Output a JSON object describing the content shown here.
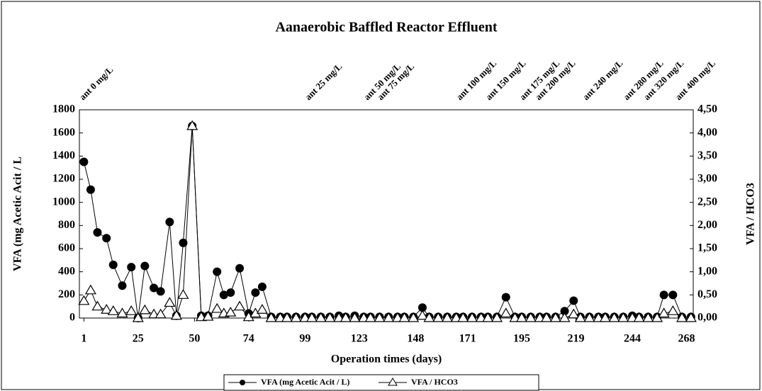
{
  "chart_data": {
    "type": "line",
    "title": "Aanaerobic Baffled Reactor Effluent",
    "xlabel": "Operation times (days)",
    "ylabel": "VFA (mg Acetic Acit / L",
    "y2label": "VFA / HCO3",
    "x": [
      1,
      4,
      7,
      11,
      14,
      18,
      22,
      25,
      28,
      32,
      35,
      39,
      42,
      45,
      49,
      53,
      56,
      60,
      63,
      66,
      70,
      74,
      77,
      80,
      84,
      88,
      91,
      95,
      99,
      102,
      106,
      110,
      114,
      117,
      121,
      125,
      128,
      132,
      136,
      140,
      143,
      147,
      151,
      154,
      158,
      162,
      166,
      169,
      173,
      177,
      180,
      184,
      188,
      192,
      195,
      199,
      203,
      206,
      210,
      214,
      218,
      221,
      225,
      229,
      232,
      236,
      240,
      244,
      247,
      251,
      255,
      258,
      262,
      266,
      270
    ],
    "xlim": [
      -1,
      271
    ],
    "xticks": [
      1,
      25,
      50,
      74,
      99,
      123,
      148,
      171,
      195,
      219,
      244,
      268
    ],
    "ylim": [
      0,
      1800
    ],
    "yticks": [
      0,
      200,
      400,
      600,
      800,
      1000,
      1200,
      1400,
      1600,
      1800
    ],
    "y2lim": [
      0,
      4.5
    ],
    "y2ticks": [
      {
        "value": 0,
        "label": "0,00"
      },
      {
        "value": 0.5,
        "label": "0,50"
      },
      {
        "value": 1,
        "label": "1,00"
      },
      {
        "value": 1.5,
        "label": "1,50"
      },
      {
        "value": 2,
        "label": "2,00"
      },
      {
        "value": 2.5,
        "label": "2,50"
      },
      {
        "value": 3,
        "label": "3,00"
      },
      {
        "value": 3.5,
        "label": "3,50"
      },
      {
        "value": 4,
        "label": "4,00"
      },
      {
        "value": 4.5,
        "label": "4,50"
      }
    ],
    "series": [
      {
        "name": "VFA (mg Acetic Acit / L)",
        "color": "#000000",
        "marker": "circle",
        "values": [
          1350,
          1110,
          740,
          690,
          460,
          280,
          440,
          0,
          450,
          260,
          230,
          830,
          20,
          650,
          1660,
          20,
          20,
          400,
          200,
          220,
          430,
          40,
          220,
          270,
          10,
          10,
          10,
          10,
          10,
          10,
          10,
          10,
          20,
          10,
          20,
          10,
          10,
          10,
          10,
          10,
          10,
          10,
          90,
          10,
          10,
          10,
          10,
          10,
          10,
          10,
          10,
          10,
          180,
          10,
          10,
          10,
          10,
          10,
          10,
          60,
          150,
          10,
          10,
          10,
          10,
          10,
          10,
          20,
          10,
          10,
          10,
          200,
          200,
          10,
          10
        ]
      },
      {
        "name": "VFA / HCO3",
        "color": "#000000",
        "marker": "triangle",
        "axis": "y2",
        "values": [
          0.37,
          0.6,
          0.25,
          0.18,
          0.15,
          0.1,
          0.15,
          0,
          0.17,
          0.08,
          0.08,
          0.33,
          0.05,
          0.5,
          4.15,
          0.02,
          0.03,
          0.2,
          0.1,
          0.12,
          0.25,
          0.02,
          0.1,
          0.18,
          0,
          0,
          0,
          0,
          0,
          0,
          0,
          0,
          0,
          0,
          0,
          0,
          0,
          0,
          0,
          0,
          0,
          0,
          0.05,
          0,
          0,
          0,
          0,
          0,
          0,
          0,
          0,
          0,
          0.1,
          0,
          0,
          0,
          0,
          0,
          0,
          0,
          0.08,
          0,
          0,
          0,
          0,
          0,
          0,
          0,
          0,
          0,
          0,
          0.1,
          0.15,
          0,
          0
        ]
      }
    ],
    "annotations": [
      {
        "text": "ant 0 mg/L",
        "x": 0
      },
      {
        "text": "ant 25 mg/L",
        "x": 100
      },
      {
        "text": "ant 50 mg/L",
        "x": 126
      },
      {
        "text": "ant 75 mg/L",
        "x": 132
      },
      {
        "text": "ant 100 mg/L",
        "x": 167
      },
      {
        "text": "ant 150 mg/L",
        "x": 180
      },
      {
        "text": "ant 175 mg/L",
        "x": 195
      },
      {
        "text": "ant 200 mg/L",
        "x": 202
      },
      {
        "text": "ant 240 mg/L",
        "x": 223
      },
      {
        "text": "ant 280 mg/L",
        "x": 241
      },
      {
        "text": "ant 320 mg/L",
        "x": 250
      },
      {
        "text": "ant 400 mg/L",
        "x": 264
      }
    ],
    "legend": "bottom"
  }
}
